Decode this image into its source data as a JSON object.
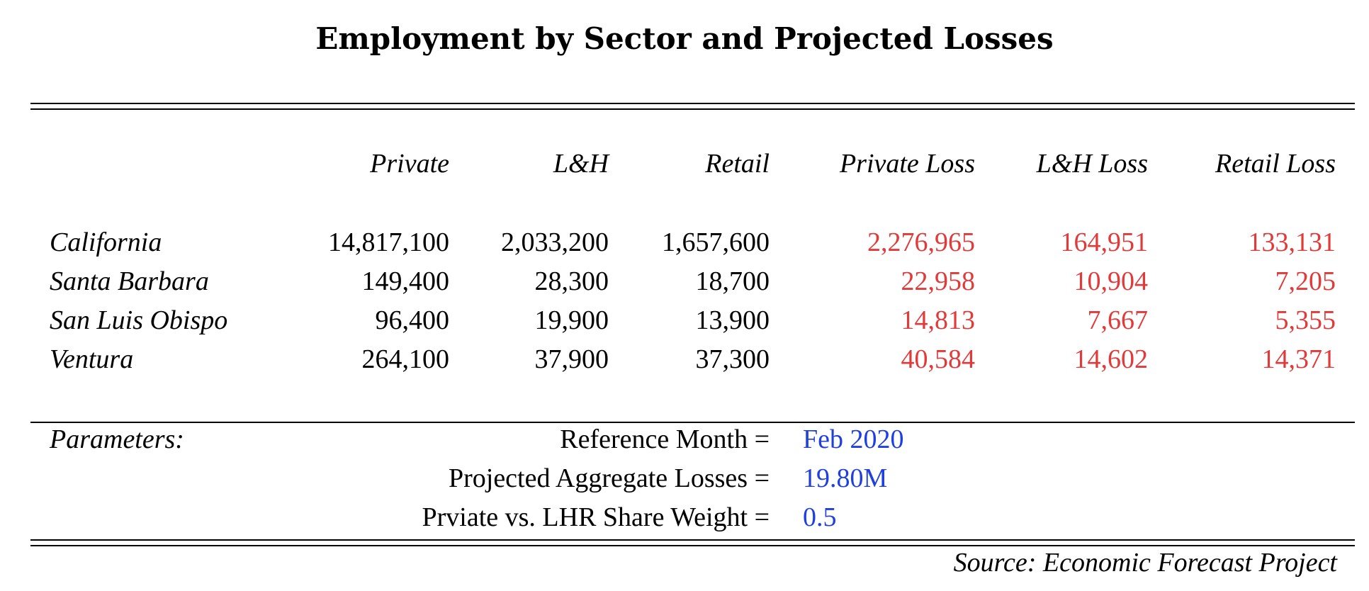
{
  "title": "Employment by Sector and Projected Losses",
  "columns": [
    "Private",
    "L&H",
    "Retail",
    "Private Loss",
    "L&H Loss",
    "Retail Loss"
  ],
  "rows": [
    {
      "name": "California",
      "values": [
        "14,817,100",
        "2,033,200",
        "1,657,600",
        "2,276,965",
        "164,951",
        "133,131"
      ]
    },
    {
      "name": "Santa Barbara",
      "values": [
        "149,400",
        "28,300",
        "18,700",
        "22,958",
        "10,904",
        "7,205"
      ]
    },
    {
      "name": "San Luis Obispo",
      "values": [
        "96,400",
        "19,900",
        "13,900",
        "14,813",
        "7,667",
        "5,355"
      ]
    },
    {
      "name": "Ventura",
      "values": [
        "264,100",
        "37,900",
        "37,300",
        "40,584",
        "14,602",
        "14,371"
      ]
    }
  ],
  "parameters": {
    "heading": "Parameters:",
    "items": [
      {
        "label": "Reference Month =",
        "value": "Feb 2020"
      },
      {
        "label": "Projected Aggregate Losses =",
        "value": "19.80M"
      },
      {
        "label": "Prviate vs. LHR Share Weight =",
        "value": "0.5"
      }
    ]
  },
  "source": "Source: Economic Forecast Project",
  "colors": {
    "loss": "#e03a3a",
    "parameter_value": "#1f3fe0"
  }
}
